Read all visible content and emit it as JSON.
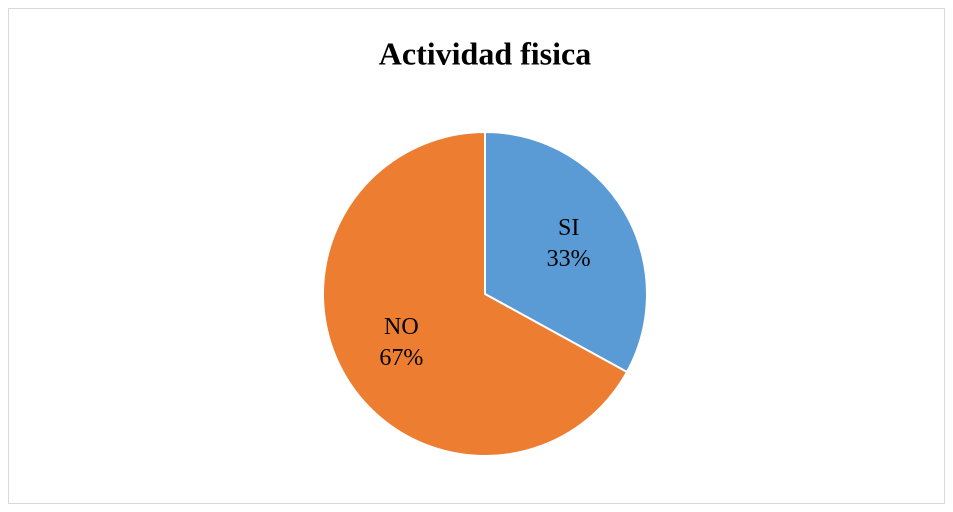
{
  "chart_data": {
    "type": "pie",
    "title": "Actividad fisica",
    "categories": [
      "SI",
      "NO"
    ],
    "values": [
      33,
      67
    ],
    "value_labels": [
      "33%",
      "67%"
    ],
    "colors": [
      "#5b9bd5",
      "#ed7d31"
    ]
  }
}
